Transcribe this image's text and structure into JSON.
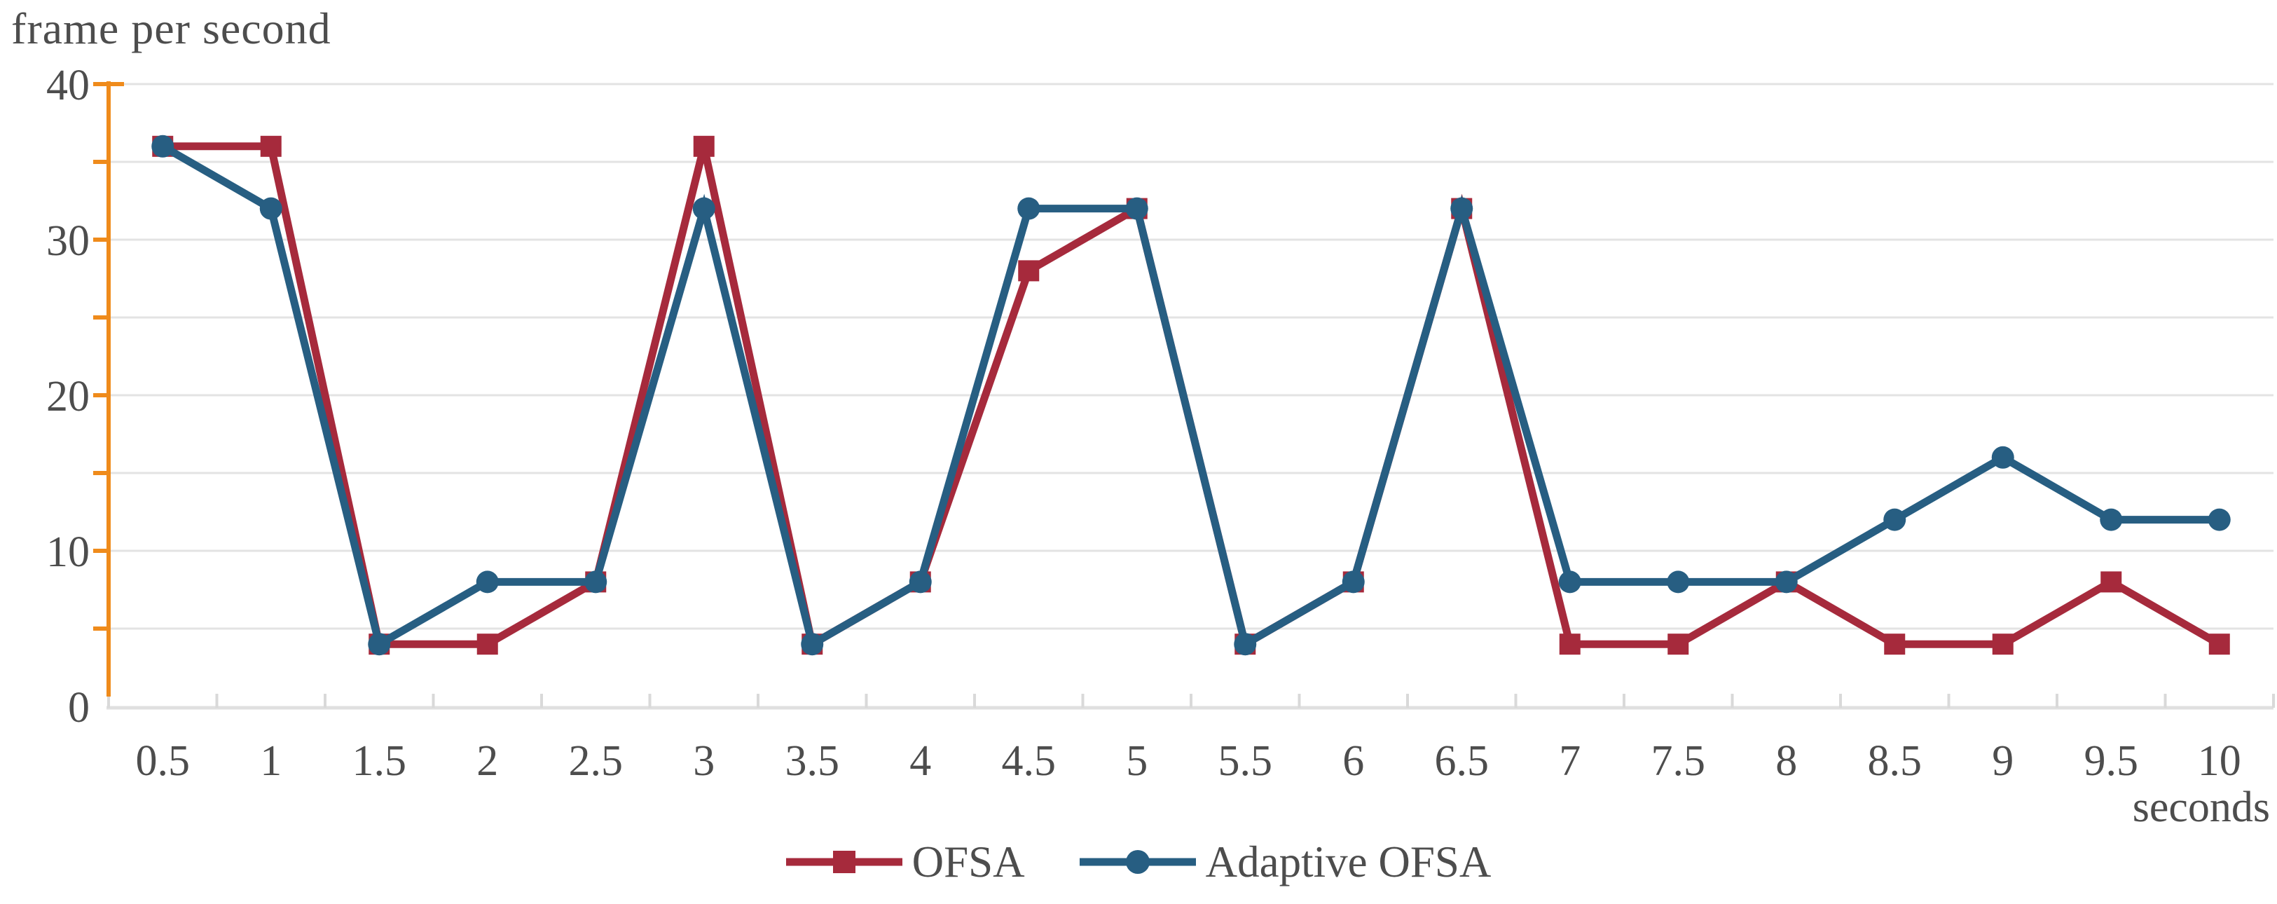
{
  "chart_data": {
    "type": "line",
    "y_axis_title": "frame per second",
    "x_axis_title": "seconds",
    "categories": [
      "0.5",
      "1",
      "1.5",
      "2",
      "2.5",
      "3",
      "3.5",
      "4",
      "4.5",
      "5",
      "5.5",
      "6",
      "6.5",
      "7",
      "7.5",
      "8",
      "8.5",
      "9",
      "9.5",
      "10"
    ],
    "series": [
      {
        "name": "OFSA",
        "marker": "square",
        "color": "#A62A3C",
        "values": [
          36,
          36,
          4,
          4,
          8,
          36,
          4,
          8,
          28,
          32,
          4,
          8,
          32,
          4,
          4,
          8,
          4,
          4,
          8,
          4
        ]
      },
      {
        "name": "Adaptive OFSA",
        "marker": "circle",
        "color": "#275E82",
        "values": [
          36,
          32,
          4,
          8,
          8,
          32,
          4,
          8,
          32,
          32,
          4,
          8,
          32,
          8,
          8,
          8,
          12,
          16,
          12,
          12
        ]
      }
    ],
    "ylim": [
      0,
      40
    ],
    "y_tick_labels": [
      "0",
      "10",
      "20",
      "30",
      "40"
    ],
    "y_label_step": 10,
    "grid_step": 5,
    "grid_on": true,
    "legend_position": "bottom-center",
    "colors": {
      "y_axis": "#EF8B1B",
      "x_axis_line": "#E0E0E0",
      "gridline": "#E3E3E3",
      "x_tick": "#D9D9D9",
      "text": "#4D4D4D"
    }
  }
}
